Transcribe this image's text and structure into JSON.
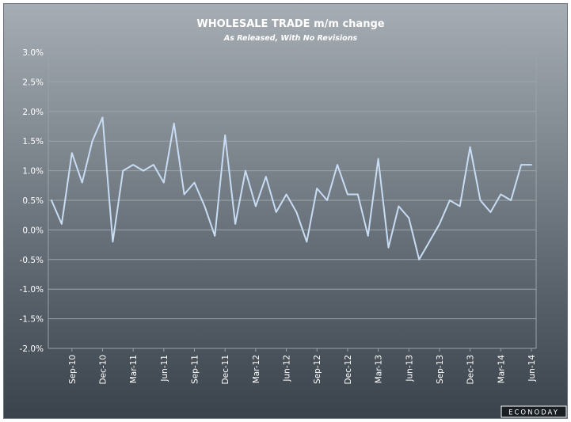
{
  "chart_data": {
    "type": "line",
    "title": "WHOLESALE TRADE m/m change",
    "subtitle": "As Released, With No Revisions",
    "xlabel": "",
    "ylabel": "",
    "ylim": [
      -2.0,
      3.0
    ],
    "y_ticks": [
      "-2.0%",
      "-1.5%",
      "-1.0%",
      "-0.5%",
      "0.0%",
      "0.5%",
      "1.0%",
      "1.5%",
      "2.0%",
      "2.5%",
      "3.0%"
    ],
    "y_tick_values": [
      -2.0,
      -1.5,
      -1.0,
      -0.5,
      0.0,
      0.5,
      1.0,
      1.5,
      2.0,
      2.5,
      3.0
    ],
    "x": [
      "Jul-10",
      "Aug-10",
      "Sep-10",
      "Oct-10",
      "Nov-10",
      "Dec-10",
      "Jan-11",
      "Feb-11",
      "Mar-11",
      "Apr-11",
      "May-11",
      "Jun-11",
      "Jul-11",
      "Aug-11",
      "Sep-11",
      "Oct-11",
      "Nov-11",
      "Dec-11",
      "Jan-12",
      "Feb-12",
      "Mar-12",
      "Apr-12",
      "May-12",
      "Jun-12",
      "Jul-12",
      "Aug-12",
      "Sep-12",
      "Oct-12",
      "Nov-12",
      "Dec-12",
      "Jan-13",
      "Feb-13",
      "Mar-13",
      "Apr-13",
      "May-13",
      "Jun-13",
      "Jul-13",
      "Aug-13",
      "Sep-13",
      "Oct-13",
      "Nov-13",
      "Dec-13",
      "Jan-14",
      "Feb-14",
      "Mar-14",
      "Apr-14",
      "May-14",
      "Jun-14"
    ],
    "x_tick_labels": [
      "Sep-10",
      "Dec-10",
      "Mar-11",
      "Jun-11",
      "Sep-11",
      "Dec-11",
      "Mar-12",
      "Jun-12",
      "Sep-12",
      "Dec-12",
      "Mar-13",
      "Jun-13",
      "Sep-13",
      "Dec-13",
      "Mar-14",
      "Jun-14"
    ],
    "series": [
      {
        "values": [
          0.5,
          0.1,
          1.3,
          0.8,
          1.5,
          1.9,
          -0.2,
          1.0,
          1.1,
          1.0,
          1.1,
          0.8,
          1.8,
          0.6,
          0.8,
          0.4,
          -0.1,
          1.6,
          0.1,
          1.0,
          0.4,
          0.9,
          0.3,
          0.6,
          0.3,
          -0.2,
          0.7,
          0.5,
          1.1,
          0.6,
          0.6,
          -0.1,
          1.2,
          -0.3,
          0.4,
          0.2,
          -0.5,
          -0.2,
          0.1,
          0.5,
          0.4,
          1.4,
          0.5,
          0.3,
          0.6,
          0.5,
          1.1,
          1.1
        ]
      }
    ],
    "grid": true,
    "line_color": "#c8dcf4",
    "grid_color": "#9aa2aa",
    "legend": "none"
  },
  "branding": {
    "logo": "ECONODAY"
  }
}
